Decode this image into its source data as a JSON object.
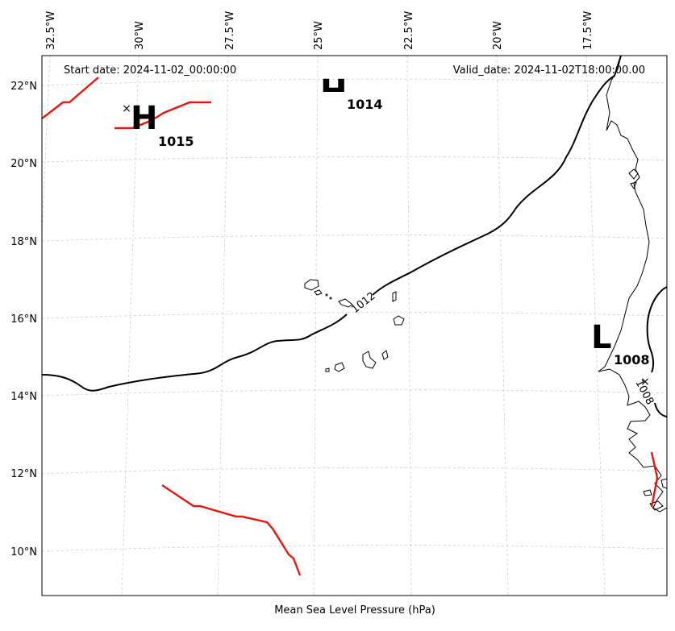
{
  "header": {
    "start_date": "Start date: 2024-11-02_00:00:00",
    "valid_date": "Valid_date: 2024-11-02T18:00:00.00"
  },
  "footer": {
    "xlabel": "Mean Sea Level Pressure (hPa)"
  },
  "axes": {
    "lon_ticks": [
      "32.5°W",
      "30°W",
      "27.5°W",
      "25°W",
      "22.5°W",
      "20°W",
      "17.5°W"
    ],
    "lat_ticks": [
      "22°N",
      "20°N",
      "18°N",
      "16°N",
      "14°N",
      "12°N",
      "10°N"
    ]
  },
  "pressure_centers": [
    {
      "symbol": "H",
      "value": "1015"
    },
    {
      "symbol": "H",
      "value": "1014"
    },
    {
      "symbol": "L",
      "value": "1008"
    }
  ],
  "contour_labels": {
    "c1012": "1012",
    "c1008": "1008"
  },
  "colors": {
    "isobar": "#000000",
    "highlight_isobar": "#e8160c",
    "grid": "#cccccc",
    "coast": "#000000"
  }
}
